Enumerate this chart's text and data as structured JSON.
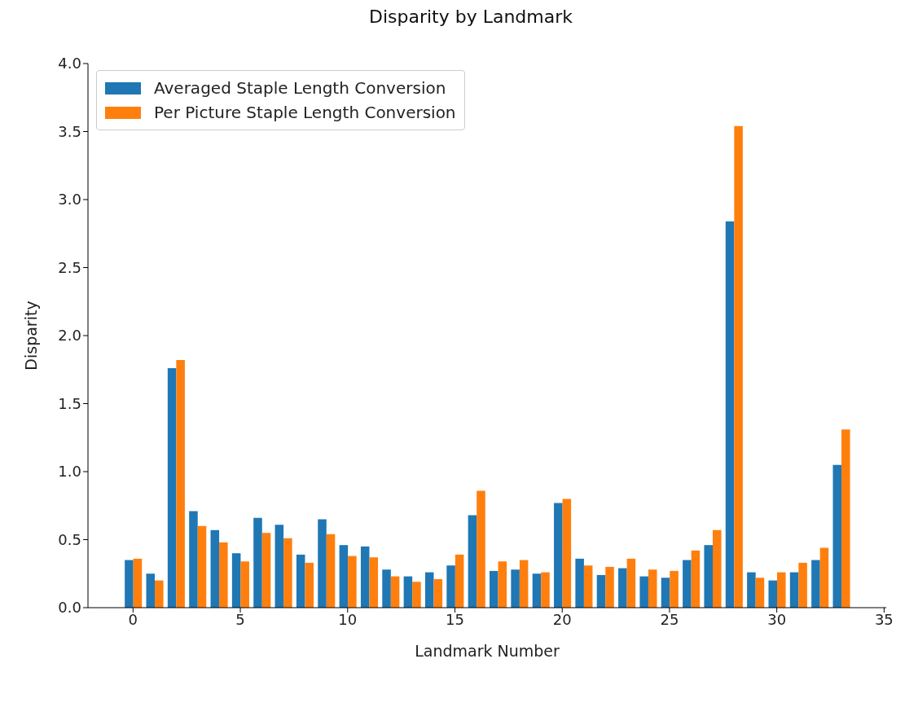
{
  "chart_data": {
    "type": "bar",
    "title": "Disparity by Landmark",
    "xlabel": "Landmark Number",
    "ylabel": "Disparity",
    "x": [
      0,
      1,
      2,
      3,
      4,
      5,
      6,
      7,
      8,
      9,
      10,
      11,
      12,
      13,
      14,
      15,
      16,
      17,
      18,
      19,
      20,
      21,
      22,
      23,
      24,
      25,
      26,
      27,
      28,
      29,
      30,
      31,
      32,
      33
    ],
    "series": [
      {
        "name": "Averaged Staple Length Conversion",
        "color": "#1f77b4",
        "values": [
          0.35,
          0.25,
          1.76,
          0.71,
          0.57,
          0.4,
          0.66,
          0.61,
          0.39,
          0.65,
          0.46,
          0.45,
          0.28,
          0.23,
          0.26,
          0.31,
          0.68,
          0.27,
          0.28,
          0.25,
          0.77,
          0.36,
          0.24,
          0.29,
          0.23,
          0.22,
          0.35,
          0.46,
          2.84,
          0.26,
          0.2,
          0.26,
          0.35,
          1.05
        ]
      },
      {
        "name": "Per Picture Staple Length Conversion",
        "color": "#ff7f0e",
        "values": [
          0.36,
          0.2,
          1.82,
          0.6,
          0.48,
          0.34,
          0.55,
          0.51,
          0.33,
          0.54,
          0.38,
          0.37,
          0.23,
          0.19,
          0.21,
          0.39,
          0.86,
          0.34,
          0.35,
          0.26,
          0.8,
          0.31,
          0.3,
          0.36,
          0.28,
          0.27,
          0.42,
          0.57,
          3.54,
          0.22,
          0.26,
          0.33,
          0.44,
          1.31
        ]
      }
    ],
    "xlim": [
      -2.1,
      35.1
    ],
    "xticks": [
      0,
      5,
      10,
      15,
      20,
      25,
      30,
      35
    ],
    "ylim": [
      0,
      4
    ],
    "yticks": [
      {
        "value": 0,
        "label": "0.0"
      },
      {
        "value": 0.5,
        "label": "0.5"
      },
      {
        "value": 1,
        "label": "1.0"
      },
      {
        "value": 1.5,
        "label": "1.5"
      },
      {
        "value": 2,
        "label": "2.0"
      },
      {
        "value": 2.5,
        "label": "2.5"
      },
      {
        "value": 3,
        "label": "3.0"
      },
      {
        "value": 3.5,
        "label": "3.5"
      },
      {
        "value": 4,
        "label": "4.0"
      }
    ],
    "grid": false,
    "legend": "top left"
  }
}
